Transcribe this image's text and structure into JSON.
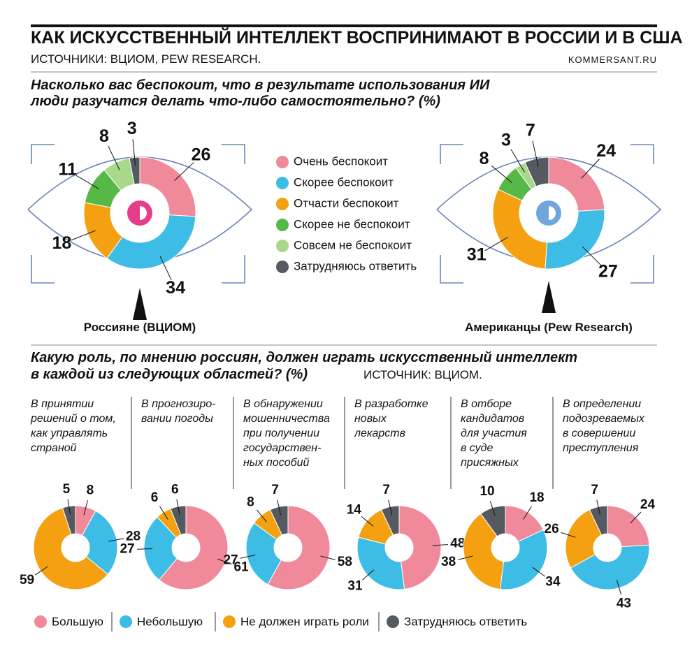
{
  "header": {
    "title": "КАК ИСКУССТВЕННЫЙ ИНТЕЛЛЕКТ ВОСПРИНИМАЮТ В РОССИИ И В США",
    "source": "ИСТОЧНИКИ: ВЦИОМ, PEW RESEARCH.",
    "site": "KOMMERSANT.RU"
  },
  "sections": [
    {
      "question": "Насколько вас беспокоит, что в результате использования ИИ\nлюди разучатся делать что-либо самостоятельно? (%)"
    },
    {
      "question": "Какую роль, по мнению россиян, должен играть искусственный интеллект\nв каждой из следующих областей? (%)",
      "source": "ИСТОЧНИК: ВЦИОМ."
    }
  ],
  "chart_data": [
    {
      "type": "donut",
      "title": "Россияне (ВЦИОМ)",
      "categories": [
        "Очень беспокоит",
        "Скорее беспокоит",
        "Отчасти беспокоит",
        "Скорее не беспокоит",
        "Совсем не беспокоит",
        "Затрудняюсь ответить"
      ],
      "colors": [
        "#f08a9b",
        "#3dbde5",
        "#f4a010",
        "#56b846",
        "#a8d88a",
        "#555a60"
      ],
      "values": [
        26,
        34,
        18,
        11,
        8,
        3
      ]
    },
    {
      "type": "donut",
      "title": "Американцы (Pew Research)",
      "categories": [
        "Очень беспокоит",
        "Скорее беспокоит",
        "Отчасти беспокоит",
        "Скорее не беспокоит",
        "Совсем не беспокоит",
        "Затрудняюсь ответить"
      ],
      "colors": [
        "#f08a9b",
        "#3dbde5",
        "#f4a010",
        "#56b846",
        "#a8d88a",
        "#555a60"
      ],
      "values": [
        24,
        27,
        31,
        8,
        3,
        7
      ]
    },
    {
      "type": "donut",
      "title": "В принятии\nрешений о том,\nкак управлять\nстраной",
      "categories": [
        "Большую",
        "Небольшую",
        "Не должен играть роли",
        "Затрудняюсь ответить"
      ],
      "colors": [
        "#f08a9b",
        "#3dbde5",
        "#f4a010",
        "#555a60"
      ],
      "values": [
        8,
        28,
        59,
        5
      ]
    },
    {
      "type": "donut",
      "title": "В прогнозиро-\nвании погоды",
      "categories": [
        "Большую",
        "Небольшую",
        "Не должен играть роли",
        "Затрудняюсь ответить"
      ],
      "colors": [
        "#f08a9b",
        "#3dbde5",
        "#f4a010",
        "#555a60"
      ],
      "values": [
        61,
        27,
        6,
        6
      ]
    },
    {
      "type": "donut",
      "title": "В обнаружении\nмошенничества\nпри получении\nгосударствен-\nных пособий",
      "categories": [
        "Большую",
        "Небольшую",
        "Не должен играть роли",
        "Затрудняюсь ответить"
      ],
      "colors": [
        "#f08a9b",
        "#3dbde5",
        "#f4a010",
        "#555a60"
      ],
      "values": [
        58,
        27,
        8,
        7
      ]
    },
    {
      "type": "donut",
      "title": "В разработке\nновых\nлекарств",
      "categories": [
        "Большую",
        "Небольшую",
        "Не должен играть роли",
        "Затрудняюсь ответить"
      ],
      "colors": [
        "#f08a9b",
        "#3dbde5",
        "#f4a010",
        "#555a60"
      ],
      "values": [
        48,
        31,
        14,
        7
      ]
    },
    {
      "type": "donut",
      "title": "В отборе\nкандидатов\nдля участия\nв суде\nприсяжных",
      "categories": [
        "Большую",
        "Небольшую",
        "Не должен играть роли",
        "Затрудняюсь ответить"
      ],
      "colors": [
        "#f08a9b",
        "#3dbde5",
        "#f4a010",
        "#555a60"
      ],
      "values": [
        18,
        34,
        38,
        10
      ]
    },
    {
      "type": "donut",
      "title": "В определении\nподозреваемых\nв совершении\nпреступления",
      "categories": [
        "Большую",
        "Небольшую",
        "Не должен играть роли",
        "Затрудняюсь ответить"
      ],
      "colors": [
        "#f08a9b",
        "#3dbde5",
        "#f4a010",
        "#555a60"
      ],
      "values": [
        24,
        43,
        26,
        7
      ]
    }
  ]
}
